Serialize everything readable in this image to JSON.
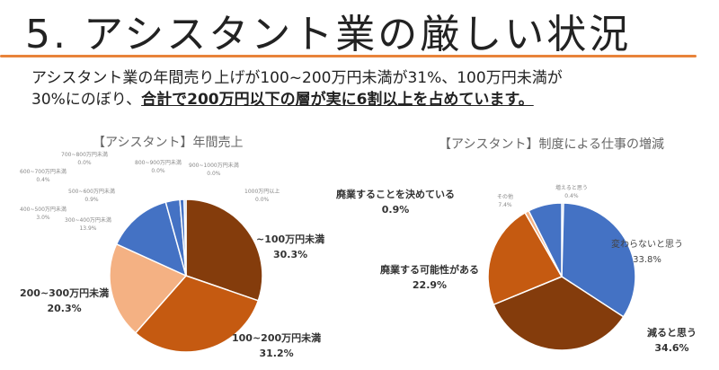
{
  "slide": {
    "title": "5. アシスタント業の厳しい状況",
    "lead_line1": "アシスタント業の年間売り上げが100~200万円未満が31%、100万円未満が",
    "lead_line2_prefix": "30%にのぼり、",
    "lead_line2_bold": "合計で200万円以下の層が実に6割以上を占めています。"
  },
  "chart_data": [
    {
      "type": "pie",
      "title": "【アシスタント】年間売上",
      "categories": [
        "~100万円未満",
        "100~200万円未満",
        "200~300万円未満",
        "300~400万円未満",
        "400~500万円未満",
        "500~600万円未満",
        "600~700万円未満",
        "700~800万円未満",
        "800~900万円未満",
        "900~1000万円未満",
        "1000万円以上"
      ],
      "values": [
        30.3,
        31.2,
        20.3,
        13.9,
        3.0,
        0.9,
        0.4,
        0.0,
        0.0,
        0.0,
        0.0
      ],
      "labels": [
        "30.3%",
        "31.2%",
        "20.3%",
        "13.9%",
        "3.0%",
        "0.9%",
        "0.4%",
        "0.0%",
        "0.0%",
        "0.0%",
        "0.0%"
      ],
      "colors": [
        "#843c0c",
        "#c55a11",
        "#f4b183",
        "#4472c4",
        "#4472c4",
        "#4472c4",
        "#8faadc",
        "#b4c7e7",
        "#b4c7e7",
        "#b4c7e7",
        "#b4c7e7"
      ]
    },
    {
      "type": "pie",
      "title": "【アシスタント】制度による仕事の増減",
      "categories": [
        "増えると思う",
        "変わらないと思う",
        "減ると思う",
        "廃業する可能性がある",
        "廃業することを決めている",
        "その他"
      ],
      "values": [
        0.4,
        33.8,
        34.6,
        22.9,
        0.9,
        7.4
      ],
      "labels": [
        "0.4%",
        "33.8%",
        "34.6%",
        "22.9%",
        "0.9%",
        "7.4%"
      ],
      "colors": [
        "#4472c4",
        "#4472c4",
        "#843c0c",
        "#c55a11",
        "#f4b183",
        "#4472c4"
      ]
    }
  ]
}
